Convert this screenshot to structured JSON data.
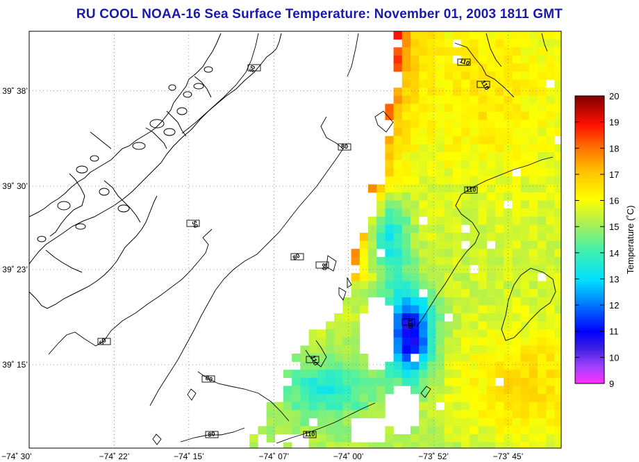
{
  "title": "RU COOL  NOAA-16  Sea Surface Temperature:  November 01, 2003 1811 GMT",
  "map": {
    "lon_range": [
      -74.5,
      -73.6667
    ],
    "lat_range": [
      39.1333,
      39.7167
    ],
    "lat_ticks": [
      {
        "value": 39.6333,
        "label": "39˚ 38’"
      },
      {
        "value": 39.5,
        "label": "39˚ 30’"
      },
      {
        "value": 39.3833,
        "label": "39˚ 23’"
      },
      {
        "value": 39.25,
        "label": "39˚ 15’"
      }
    ],
    "lon_ticks": [
      {
        "value": -74.5,
        "label": "−74˚ 30’"
      },
      {
        "value": -74.3667,
        "label": "−74˚ 22’"
      },
      {
        "value": -74.25,
        "label": "−74˚ 15’"
      },
      {
        "value": -74.1167,
        "label": "−74˚ 07’"
      },
      {
        "value": -74.0,
        "label": "−74˚ 00’"
      },
      {
        "value": -73.8667,
        "label": "−73˚ 52’"
      },
      {
        "value": -73.75,
        "label": "−73˚ 45’"
      }
    ],
    "grid": "dotted",
    "contour_labels": [
      "50",
      "80",
      "110"
    ]
  },
  "colorbar": {
    "min": 9,
    "max": 20,
    "ticks": [
      "20",
      "19",
      "18",
      "17",
      "16",
      "15",
      "14",
      "13",
      "12",
      "11",
      "10",
      "9"
    ],
    "label": "Temperature (˚C)",
    "colormap": "jet",
    "position": "right"
  }
}
